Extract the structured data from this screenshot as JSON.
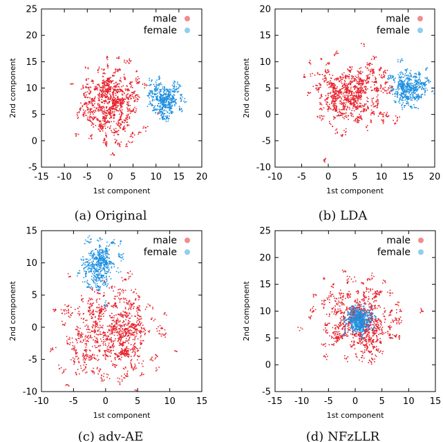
{
  "colors": {
    "male": "#e8202a",
    "female": "#1e90e0",
    "male_marker": "#f28d8d",
    "female_marker": "#8fcdf2",
    "axis": "#000000"
  },
  "chart_data": [
    {
      "type": "scatter",
      "caption": "(a) Original",
      "xlabel": "1st component",
      "ylabel": "2nd component",
      "xlim": [
        -15,
        20
      ],
      "ylim": [
        -5,
        25
      ],
      "xticks": [
        -15,
        -10,
        -5,
        0,
        5,
        10,
        15,
        20
      ],
      "yticks": [
        -5,
        0,
        5,
        10,
        15,
        20,
        25
      ],
      "legend_position": "top-right",
      "series": [
        {
          "name": "male",
          "center": [
            0,
            7.5
          ],
          "spread": [
            3.2,
            3.3
          ],
          "count": 230
        },
        {
          "name": "female",
          "center": [
            12,
            8
          ],
          "spread": [
            1.8,
            1.6
          ],
          "count": 110
        }
      ]
    },
    {
      "type": "scatter",
      "caption": "(b) LDA",
      "xlabel": "1st component",
      "ylabel": "2nd component",
      "xlim": [
        -10,
        20
      ],
      "ylim": [
        -10,
        20
      ],
      "xticks": [
        -10,
        -5,
        0,
        5,
        10,
        15,
        20
      ],
      "yticks": [
        -10,
        -5,
        0,
        5,
        10,
        15,
        20
      ],
      "legend_position": "top-right",
      "series": [
        {
          "name": "male",
          "center": [
            4,
            4
          ],
          "spread": [
            3.6,
            3.2
          ],
          "count": 230
        },
        {
          "name": "female",
          "center": [
            15,
            5
          ],
          "spread": [
            1.8,
            1.5
          ],
          "count": 110
        }
      ]
    },
    {
      "type": "scatter",
      "caption": "(c) adv-AE",
      "xlabel": "1st component",
      "ylabel": "2nd component",
      "xlim": [
        -10,
        15
      ],
      "ylim": [
        -10,
        15
      ],
      "xticks": [
        -10,
        -5,
        0,
        5,
        10,
        15
      ],
      "yticks": [
        -10,
        -5,
        0,
        5,
        10,
        15
      ],
      "legend_position": "top-right",
      "series": [
        {
          "name": "male",
          "center": [
            1,
            -1
          ],
          "spread": [
            3.6,
            3.6
          ],
          "count": 260
        },
        {
          "name": "female",
          "center": [
            -1,
            10
          ],
          "spread": [
            1.3,
            1.8
          ],
          "count": 110
        }
      ]
    },
    {
      "type": "scatter",
      "caption": "(d) NFzLLR",
      "xlabel": "1st component",
      "ylabel": "2nd component",
      "xlim": [
        -15,
        15
      ],
      "ylim": [
        -5,
        25
      ],
      "xticks": [
        -15,
        -10,
        -5,
        0,
        5,
        10,
        15
      ],
      "yticks": [
        -5,
        0,
        5,
        10,
        15,
        20,
        25
      ],
      "legend_position": "top-right",
      "series": [
        {
          "name": "male",
          "center": [
            1,
            8.5
          ],
          "spread": [
            3.5,
            3.5
          ],
          "count": 230
        },
        {
          "name": "female",
          "center": [
            0.8,
            8.5
          ],
          "spread": [
            1.2,
            1.2
          ],
          "count": 110
        }
      ]
    }
  ]
}
